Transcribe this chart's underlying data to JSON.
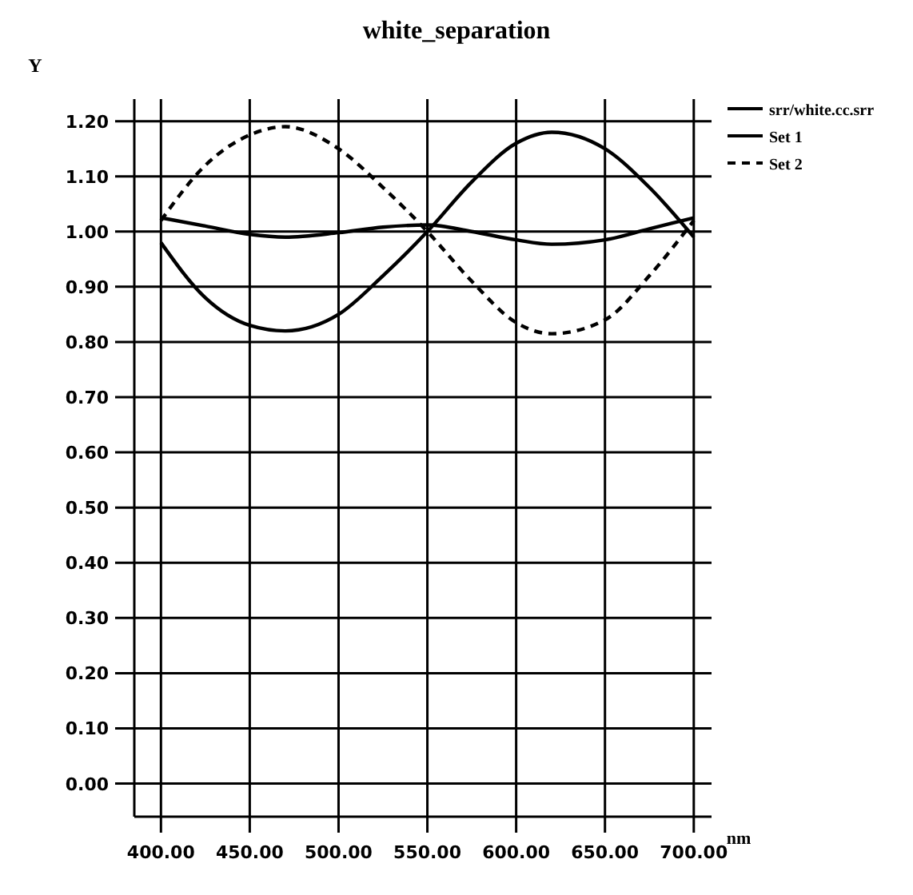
{
  "chart_data": {
    "type": "line",
    "title": "white_separation",
    "xlabel": "nm",
    "ylabel": "Y",
    "legend": "top right",
    "grid": true,
    "marker": "none",
    "xlim": [
      385,
      710
    ],
    "ylim": [
      -0.06,
      1.24
    ],
    "xticks": [
      {
        "value": 400,
        "label": "400.00"
      },
      {
        "value": 450,
        "label": "450.00"
      },
      {
        "value": 500,
        "label": "500.00"
      },
      {
        "value": 550,
        "label": "550.00"
      },
      {
        "value": 600,
        "label": "600.00"
      },
      {
        "value": 650,
        "label": "650.00"
      },
      {
        "value": 700,
        "label": "700.00"
      }
    ],
    "yticks": [
      {
        "value": 0,
        "label": "0.00"
      },
      {
        "value": 0.1,
        "label": "0.10"
      },
      {
        "value": 0.2,
        "label": "0.20"
      },
      {
        "value": 0.3,
        "label": "0.30"
      },
      {
        "value": 0.4,
        "label": "0.40"
      },
      {
        "value": 0.5,
        "label": "0.50"
      },
      {
        "value": 0.6,
        "label": "0.60"
      },
      {
        "value": 0.7,
        "label": "0.70"
      },
      {
        "value": 0.8,
        "label": "0.80"
      },
      {
        "value": 0.9,
        "label": "0.90"
      },
      {
        "value": 1.0,
        "label": "1.00"
      },
      {
        "value": 1.1,
        "label": "1.10"
      },
      {
        "value": 1.2,
        "label": "1.20"
      }
    ],
    "x": [
      400,
      425,
      450,
      470,
      500,
      525,
      550,
      575,
      600,
      620,
      650,
      675,
      700
    ],
    "series": [
      {
        "name": "srr/white.cc.srr",
        "color": "#000000",
        "line_style": "solid",
        "values": [
          1.025,
          1.01,
          0.995,
          0.99,
          0.998,
          1.008,
          1.012,
          1.0,
          0.985,
          0.977,
          0.985,
          1.005,
          1.025
        ]
      },
      {
        "name": "Set 1",
        "color": "#000000",
        "line_style": "solid",
        "values": [
          0.98,
          0.88,
          0.83,
          0.82,
          0.85,
          0.92,
          1.0,
          1.09,
          1.16,
          1.18,
          1.15,
          1.08,
          0.99
        ]
      },
      {
        "name": "Set 2",
        "color": "#000000",
        "line_style": "dashed",
        "values": [
          1.02,
          1.12,
          1.175,
          1.19,
          1.15,
          1.08,
          1.0,
          0.91,
          0.835,
          0.815,
          0.84,
          0.92,
          1.02
        ]
      }
    ]
  }
}
